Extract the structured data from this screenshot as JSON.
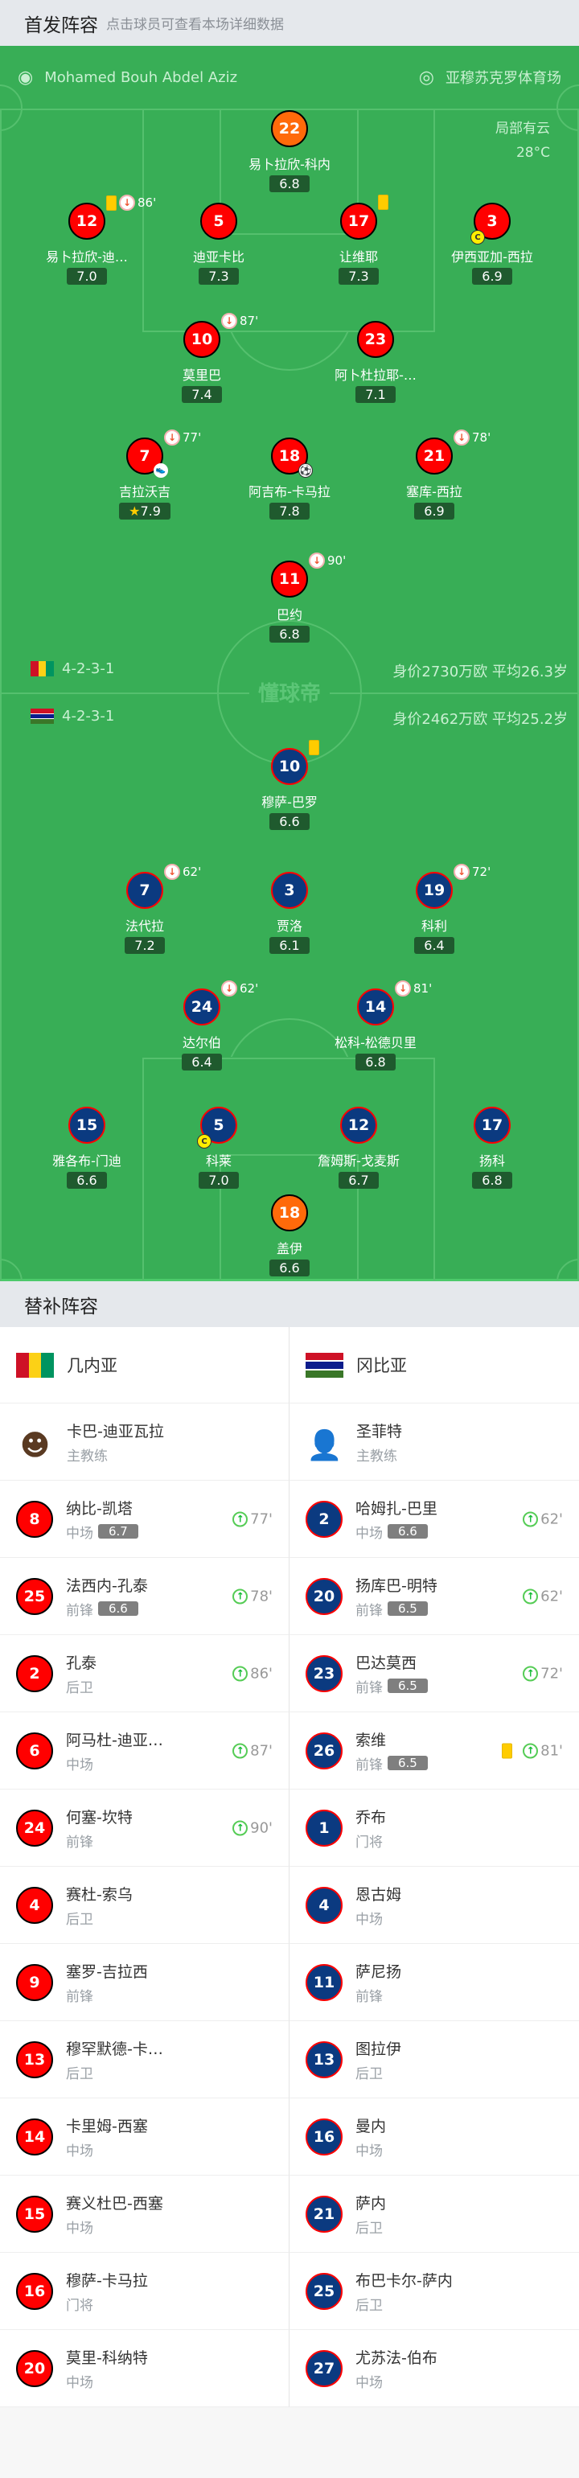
{
  "header": {
    "title": "首发阵容",
    "subtitle": "点击球员可查看本场详细数据"
  },
  "match": {
    "referee": "Mohamed Bouh Abdel Aziz",
    "stadium": "亚穆苏克罗体育场",
    "weather": "局部有云",
    "temperature": "28°C",
    "watermark": "懂球帝"
  },
  "colors": {
    "pitch": "#38ae56",
    "home": "#ff0000",
    "away": "#0b3a80",
    "keeper": "#ff6a0a",
    "rating_bg": "#1f5a2e"
  },
  "home": {
    "name": "几内亚",
    "formation": "4-2-3-1",
    "value": "身价2730万欧 平均26.3岁",
    "players": [
      {
        "num": "22",
        "name": "易卜拉欣-科内",
        "rating": "6.8",
        "gk": true
      },
      {
        "num": "12",
        "name": "易卜拉欣-迪…",
        "rating": "7.0",
        "yellow": true,
        "out": "86'"
      },
      {
        "num": "5",
        "name": "迪亚卡比",
        "rating": "7.3"
      },
      {
        "num": "17",
        "name": "让维耶",
        "rating": "7.3",
        "yellow": true
      },
      {
        "num": "3",
        "name": "伊西亚加-西拉",
        "rating": "6.9",
        "captain": true
      },
      {
        "num": "10",
        "name": "莫里巴",
        "rating": "7.4",
        "out": "87'"
      },
      {
        "num": "23",
        "name": "阿卜杜拉耶-…",
        "rating": "7.1"
      },
      {
        "num": "7",
        "name": "吉拉沃吉",
        "rating": "7.9",
        "out": "77'",
        "assist": true,
        "mvp": true
      },
      {
        "num": "18",
        "name": "阿吉布-卡马拉",
        "rating": "7.8",
        "goal": true
      },
      {
        "num": "21",
        "name": "塞库-西拉",
        "rating": "6.9",
        "out": "78'"
      },
      {
        "num": "11",
        "name": "巴约",
        "rating": "6.8",
        "out": "90'"
      }
    ]
  },
  "away": {
    "name": "冈比亚",
    "formation": "4-2-3-1",
    "value": "身价2462万欧 平均25.2岁",
    "players": [
      {
        "num": "10",
        "name": "穆萨-巴罗",
        "rating": "6.6",
        "yellow": true
      },
      {
        "num": "7",
        "name": "法代拉",
        "rating": "7.2",
        "out": "62'"
      },
      {
        "num": "3",
        "name": "贾洛",
        "rating": "6.1"
      },
      {
        "num": "19",
        "name": "科利",
        "rating": "6.4",
        "out": "72'"
      },
      {
        "num": "24",
        "name": "达尔伯",
        "rating": "6.4",
        "out": "62'"
      },
      {
        "num": "14",
        "name": "松科-松德贝里",
        "rating": "6.8",
        "out": "81'"
      },
      {
        "num": "15",
        "name": "雅各布-门迪",
        "rating": "6.6"
      },
      {
        "num": "5",
        "name": "科莱",
        "rating": "7.0",
        "captain": true
      },
      {
        "num": "12",
        "name": "詹姆斯-戈麦斯",
        "rating": "6.7"
      },
      {
        "num": "17",
        "name": "扬科",
        "rating": "6.8"
      },
      {
        "num": "18",
        "name": "盖伊",
        "rating": "6.6",
        "gk": true
      }
    ]
  },
  "subs": {
    "title": "替补阵容",
    "home_coach": {
      "name": "卡巴-迪亚瓦拉",
      "role": "主教练"
    },
    "away_coach": {
      "name": "圣菲特",
      "role": "主教练"
    },
    "home": [
      {
        "num": "8",
        "name": "纳比-凯塔",
        "pos": "中场",
        "rating": "6.7",
        "in": "77'"
      },
      {
        "num": "25",
        "name": "法西内-孔泰",
        "pos": "前锋",
        "rating": "6.6",
        "in": "78'"
      },
      {
        "num": "2",
        "name": "孔泰",
        "pos": "后卫",
        "in": "86'"
      },
      {
        "num": "6",
        "name": "阿马杜-迪亚…",
        "pos": "中场",
        "in": "87'"
      },
      {
        "num": "24",
        "name": "何塞-坎特",
        "pos": "前锋",
        "in": "90'"
      },
      {
        "num": "4",
        "name": "赛杜-索乌",
        "pos": "后卫"
      },
      {
        "num": "9",
        "name": "塞罗-吉拉西",
        "pos": "前锋"
      },
      {
        "num": "13",
        "name": "穆罕默德-卡…",
        "pos": "后卫"
      },
      {
        "num": "14",
        "name": "卡里姆-西塞",
        "pos": "中场"
      },
      {
        "num": "15",
        "name": "赛义杜巴-西塞",
        "pos": "中场"
      },
      {
        "num": "16",
        "name": "穆萨-卡马拉",
        "pos": "门将"
      },
      {
        "num": "20",
        "name": "莫里-科纳特",
        "pos": "中场"
      }
    ],
    "away": [
      {
        "num": "2",
        "name": "哈姆扎-巴里",
        "pos": "中场",
        "rating": "6.6",
        "in": "62'"
      },
      {
        "num": "20",
        "name": "扬库巴-明特",
        "pos": "前锋",
        "rating": "6.5",
        "in": "62'"
      },
      {
        "num": "23",
        "name": "巴达莫西",
        "pos": "前锋",
        "rating": "6.5",
        "in": "72'"
      },
      {
        "num": "26",
        "name": "索维",
        "pos": "前锋",
        "rating": "6.5",
        "in": "81'",
        "yellow": true
      },
      {
        "num": "1",
        "name": "乔布",
        "pos": "门将"
      },
      {
        "num": "4",
        "name": "恩古姆",
        "pos": "中场"
      },
      {
        "num": "11",
        "name": "萨尼扬",
        "pos": "前锋"
      },
      {
        "num": "13",
        "name": "图拉伊",
        "pos": "后卫"
      },
      {
        "num": "16",
        "name": "曼内",
        "pos": "中场"
      },
      {
        "num": "21",
        "name": "萨内",
        "pos": "后卫"
      },
      {
        "num": "25",
        "name": "布巴卡尔-萨内",
        "pos": "后卫"
      },
      {
        "num": "27",
        "name": "尤苏法-伯布",
        "pos": "中场"
      }
    ]
  }
}
